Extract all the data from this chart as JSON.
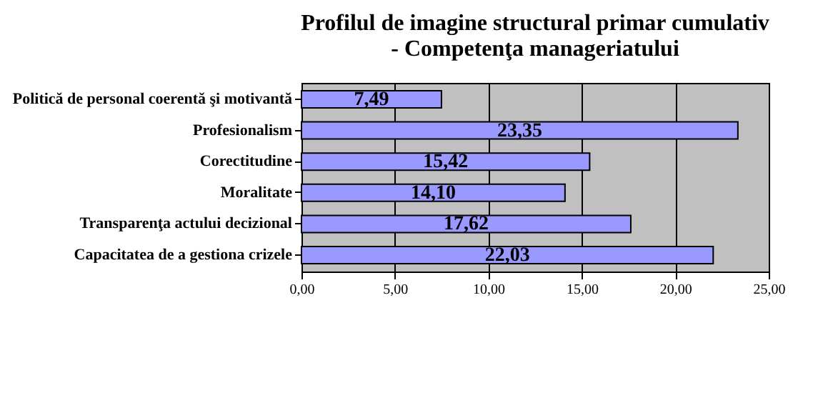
{
  "chart_data": {
    "type": "bar",
    "orientation": "horizontal",
    "title": "Profilul de imagine structural primar cumulativ\n- Competenţa manageriatului",
    "categories": [
      "Politică de personal coerentă şi motivantă",
      "Profesionalism",
      "Corectitudine",
      "Moralitate",
      "Transparenţa actului decizional",
      "Capacitatea de a gestiona crizele"
    ],
    "values": [
      7.49,
      23.35,
      15.42,
      14.1,
      17.62,
      22.03
    ],
    "value_labels": [
      "7,49",
      "23,35",
      "15,42",
      "14,10",
      "17,62",
      "22,03"
    ],
    "color": "#9999ff",
    "xlim": [
      0,
      25
    ],
    "xticks": [
      {
        "value": 0,
        "label": "0,00"
      },
      {
        "value": 5,
        "label": "5,00"
      },
      {
        "value": 10,
        "label": "10,00"
      },
      {
        "value": 15,
        "label": "15,00"
      },
      {
        "value": 20,
        "label": "20,00"
      },
      {
        "value": 25,
        "label": "25,00"
      }
    ],
    "grid": "x"
  }
}
